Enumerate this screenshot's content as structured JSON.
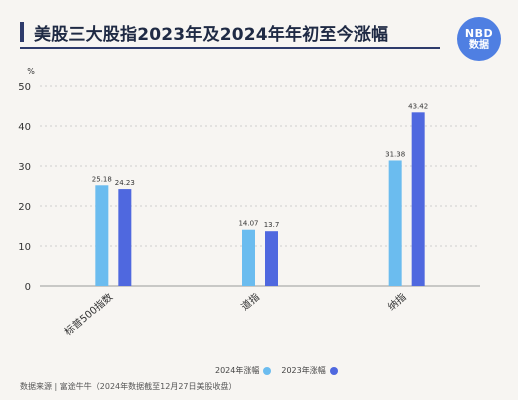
{
  "header": {
    "title": "美股三大股指2023年及2024年年初至今涨幅",
    "logo_line1": "NBD",
    "logo_line2": "数据"
  },
  "footer": {
    "source": "数据来源 | 富途牛牛（2024年数据截至12月27日美股收盘）"
  },
  "colors": {
    "series_2024": "#6bbcef",
    "series_2023": "#4f68df",
    "title_accent": "#2e3b6b",
    "logo_bg": "#4f7fe2"
  },
  "chart_data": {
    "type": "bar",
    "categories": [
      "标普500指数",
      "道指",
      "纳指"
    ],
    "series": [
      {
        "name": "2024年涨幅",
        "values": [
          25.18,
          14.07,
          31.38
        ],
        "value_labels": [
          "25.18",
          "14.07",
          "31.38"
        ]
      },
      {
        "name": "2023年涨幅",
        "values": [
          24.23,
          13.7,
          43.42
        ],
        "value_labels": [
          "24.23",
          "13.7",
          "43.42"
        ]
      }
    ],
    "ylabel": "%",
    "ylim": [
      0,
      50
    ],
    "yticks": [
      0,
      10,
      20,
      30,
      40,
      50
    ],
    "legend_position": "bottom-center"
  }
}
